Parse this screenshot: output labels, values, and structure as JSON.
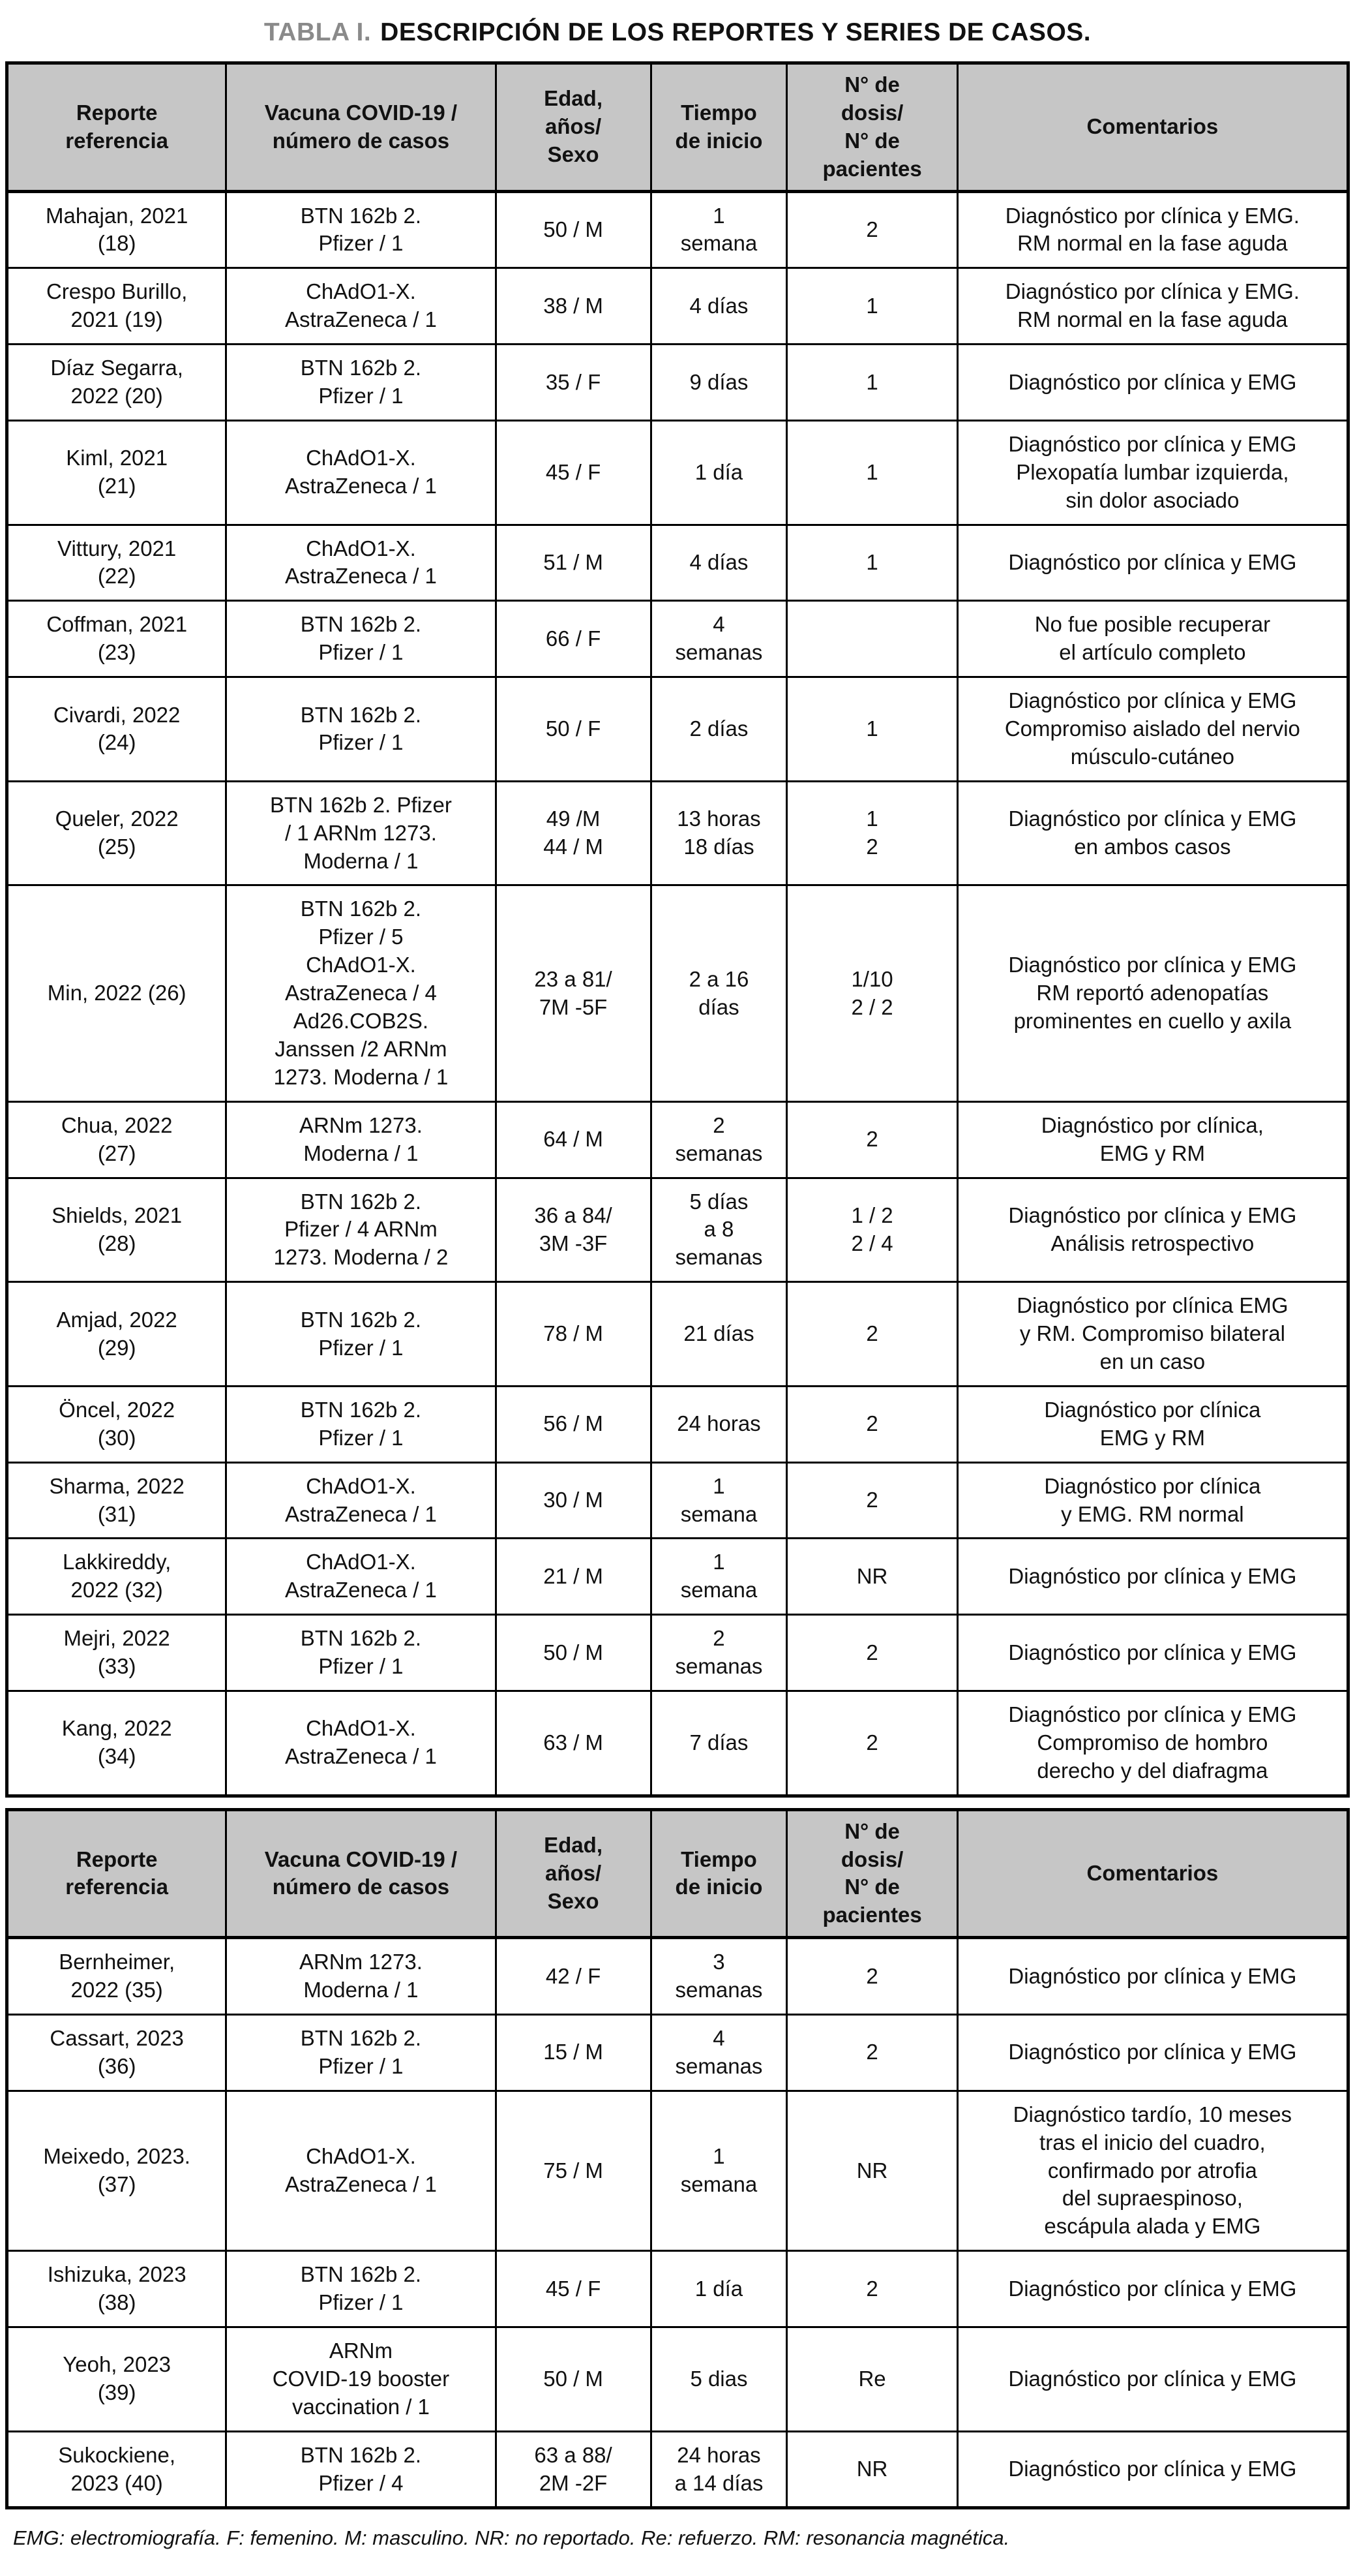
{
  "title": {
    "label": "TABLA I.",
    "text": "DESCRIPCIÓN DE LOS REPORTES Y SERIES DE CASOS."
  },
  "columns": [
    "Reporte\nreferencia",
    "Vacuna COVID-19 /\nnúmero de casos",
    "Edad,\naños/\nSexo",
    "Tiempo\nde inicio",
    "N° de\ndosis/\nN° de\npacientes",
    "Comentarios"
  ],
  "row_keys": [
    "ref",
    "vaccine",
    "age_sex",
    "onset",
    "doses",
    "comments"
  ],
  "tables": [
    {
      "rows": [
        {
          "ref": "Mahajan, 2021\n(18)",
          "vaccine": "BTN 162b 2.\nPfizer / 1",
          "age_sex": "50 / M",
          "onset": "1\nsemana",
          "doses": "2",
          "comments": "Diagnóstico por clínica y EMG.\nRM normal en la fase aguda"
        },
        {
          "ref": "Crespo Burillo,\n2021 (19)",
          "vaccine": "ChAdO1-X.\nAstraZeneca / 1",
          "age_sex": "38 / M",
          "onset": "4 días",
          "doses": "1",
          "comments": "Diagnóstico por clínica y EMG.\nRM normal en la fase aguda"
        },
        {
          "ref": "Díaz Segarra,\n2022 (20)",
          "vaccine": "BTN 162b 2.\nPfizer / 1",
          "age_sex": "35 / F",
          "onset": "9 días",
          "doses": "1",
          "comments": "Diagnóstico por clínica y EMG"
        },
        {
          "ref": "Kiml, 2021\n(21)",
          "vaccine": "ChAdO1-X.\nAstraZeneca / 1",
          "age_sex": "45 / F",
          "onset": "1 día",
          "doses": "1",
          "comments": "Diagnóstico por clínica y EMG\nPlexopatía lumbar izquierda,\nsin dolor asociado"
        },
        {
          "ref": "Vittury, 2021\n(22)",
          "vaccine": "ChAdO1-X.\nAstraZeneca / 1",
          "age_sex": "51 / M",
          "onset": "4 días",
          "doses": "1",
          "comments": "Diagnóstico por clínica y EMG"
        },
        {
          "ref": "Coffman, 2021\n(23)",
          "vaccine": "BTN 162b 2.\nPfizer / 1",
          "age_sex": "66 / F",
          "onset": "4\nsemanas",
          "doses": "",
          "comments": "No fue posible recuperar\nel artículo completo"
        },
        {
          "ref": "Civardi, 2022\n(24)",
          "vaccine": "BTN 162b 2.\nPfizer / 1",
          "age_sex": "50 / F",
          "onset": "2 días",
          "doses": "1",
          "comments": "Diagnóstico por clínica y EMG\nCompromiso aislado del nervio\nmúsculo-cutáneo"
        },
        {
          "ref": "Queler, 2022\n(25)",
          "vaccine": "BTN 162b 2. Pfizer\n/ 1 ARNm 1273.\nModerna / 1",
          "age_sex": "49 /M\n44 / M",
          "onset": "13 horas\n18 días",
          "doses": "1\n2",
          "comments": "Diagnóstico por clínica y EMG\nen ambos casos"
        },
        {
          "ref": "Min, 2022 (26)",
          "vaccine": "BTN 162b 2.\nPfizer / 5\nChAdO1-X.\nAstraZeneca / 4\nAd26.COB2S.\nJanssen /2 ARNm\n1273. Moderna / 1",
          "age_sex": "23 a 81/\n7M -5F",
          "onset": "2 a 16\ndías",
          "doses": "1/10\n2 / 2",
          "comments": "Diagnóstico por clínica y EMG\nRM reportó adenopatías\nprominentes en cuello y axila"
        },
        {
          "ref": "Chua, 2022\n(27)",
          "vaccine": "ARNm 1273.\nModerna / 1",
          "age_sex": "64 / M",
          "onset": "2\nsemanas",
          "doses": "2",
          "comments": "Diagnóstico por clínica,\nEMG y RM"
        },
        {
          "ref": "Shields, 2021\n(28)",
          "vaccine": "BTN 162b 2.\nPfizer / 4 ARNm\n1273. Moderna / 2",
          "age_sex": "36 a 84/\n3M -3F",
          "onset": "5 días\na 8\nsemanas",
          "doses": "1 / 2\n2 / 4",
          "comments": "Diagnóstico por clínica y EMG\nAnálisis retrospectivo"
        },
        {
          "ref": "Amjad, 2022\n(29)",
          "vaccine": "BTN 162b 2.\nPfizer / 1",
          "age_sex": "78 / M",
          "onset": "21 días",
          "doses": "2",
          "comments": "Diagnóstico por clínica EMG\ny RM. Compromiso bilateral\nen un caso"
        },
        {
          "ref": "Öncel, 2022\n(30)",
          "vaccine": "BTN 162b 2.\nPfizer / 1",
          "age_sex": "56 / M",
          "onset": "24 horas",
          "doses": "2",
          "comments": "Diagnóstico por clínica\nEMG y RM"
        },
        {
          "ref": "Sharma, 2022\n(31)",
          "vaccine": "ChAdO1-X.\nAstraZeneca / 1",
          "age_sex": "30 / M",
          "onset": "1\nsemana",
          "doses": "2",
          "comments": "Diagnóstico por clínica\ny EMG. RM normal"
        },
        {
          "ref": "Lakkireddy,\n2022 (32)",
          "vaccine": "ChAdO1-X.\nAstraZeneca / 1",
          "age_sex": "21 / M",
          "onset": "1\nsemana",
          "doses": "NR",
          "comments": "Diagnóstico por clínica y EMG"
        },
        {
          "ref": "Mejri, 2022\n(33)",
          "vaccine": "BTN 162b 2.\nPfizer / 1",
          "age_sex": "50 / M",
          "onset": "2\nsemanas",
          "doses": "2",
          "comments": "Diagnóstico por clínica y EMG"
        },
        {
          "ref": "Kang, 2022\n(34)",
          "vaccine": "ChAdO1-X.\nAstraZeneca / 1",
          "age_sex": "63 / M",
          "onset": "7 días",
          "doses": "2",
          "comments": "Diagnóstico por clínica y EMG\nCompromiso de hombro\nderecho y del diafragma"
        }
      ]
    },
    {
      "rows": [
        {
          "ref": "Bernheimer,\n2022 (35)",
          "vaccine": "ARNm 1273.\nModerna / 1",
          "age_sex": "42 / F",
          "onset": "3\nsemanas",
          "doses": "2",
          "comments": "Diagnóstico por clínica y EMG"
        },
        {
          "ref": "Cassart, 2023\n(36)",
          "vaccine": "BTN 162b 2.\nPfizer / 1",
          "age_sex": "15 / M",
          "onset": "4\nsemanas",
          "doses": "2",
          "comments": "Diagnóstico por clínica y EMG"
        },
        {
          "ref": "Meixedo, 2023.\n(37)",
          "vaccine": "ChAdO1-X.\nAstraZeneca / 1",
          "age_sex": "75 / M",
          "onset": "1\nsemana",
          "doses": "NR",
          "comments": "Diagnóstico tardío, 10 meses\ntras el inicio del cuadro,\nconfirmado por atrofia\ndel supraespinoso,\nescápula alada y EMG"
        },
        {
          "ref": "Ishizuka, 2023\n(38)",
          "vaccine": "BTN 162b 2.\nPfizer / 1",
          "age_sex": "45 / F",
          "onset": "1 día",
          "doses": "2",
          "comments": "Diagnóstico por clínica y EMG"
        },
        {
          "ref": "Yeoh, 2023\n(39)",
          "vaccine": "ARNm\nCOVID-19 booster\nvaccination / 1",
          "age_sex": "50 / M",
          "onset": "5 dias",
          "doses": "Re",
          "comments": "Diagnóstico por clínica y EMG"
        },
        {
          "ref": "Sukockiene,\n2023 (40)",
          "vaccine": "BTN 162b 2.\nPfizer / 4",
          "age_sex": "63 a 88/\n2M -2F",
          "onset": "24 horas\na 14 días",
          "doses": "NR",
          "comments": "Diagnóstico por clínica y EMG"
        }
      ]
    }
  ],
  "footnote": "EMG: electromiografía. F: femenino. M: masculino. NR: no reportado. Re: refuerzo. RM: resonancia magnética.",
  "colors": {
    "header_bg": "#c6c6c6",
    "border": "#000000",
    "title_label": "#8a8a8a",
    "text": "#111111"
  }
}
